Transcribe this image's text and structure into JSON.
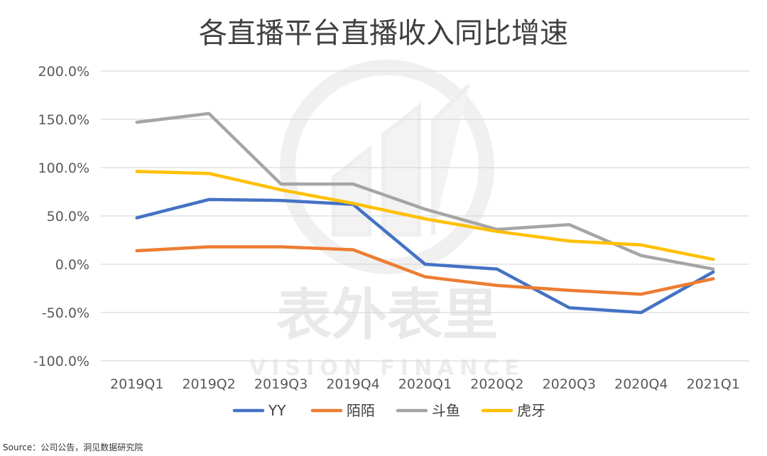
{
  "chart_data": {
    "type": "line",
    "title": "各直播平台直播收入同比增速",
    "xlabel": "",
    "ylabel": "",
    "categories": [
      "2019Q1",
      "2019Q2",
      "2019Q3",
      "2019Q4",
      "2020Q1",
      "2020Q2",
      "2020Q3",
      "2020Q4",
      "2021Q1"
    ],
    "y_ticks": [
      "200.0%",
      "150.0%",
      "100.0%",
      "50.0%",
      "0.0%",
      "-50.0%",
      "-100.0%"
    ],
    "ylim": [
      -100,
      200
    ],
    "grid": "horizontal",
    "legend_position": "bottom",
    "series": [
      {
        "name": "YY",
        "color": "#4472c4",
        "values": [
          48,
          67,
          66,
          62,
          0,
          -5,
          -45,
          -50,
          -8
        ]
      },
      {
        "name": "陌陌",
        "color": "#ed7d31",
        "values": [
          14,
          18,
          18,
          15,
          -13,
          -22,
          -27,
          -31,
          -15
        ]
      },
      {
        "name": "斗鱼",
        "color": "#a5a5a5",
        "values": [
          147,
          156,
          83,
          83,
          57,
          36,
          41,
          9,
          -5
        ]
      },
      {
        "name": "虎牙",
        "color": "#ffc000",
        "values": [
          96,
          94,
          77,
          63,
          47,
          34,
          24,
          20,
          5
        ]
      }
    ]
  },
  "watermark": {
    "text": "表外表里",
    "subtext": "VISION FINANCE"
  },
  "source": "Source：公司公告，洞见数据研究院"
}
